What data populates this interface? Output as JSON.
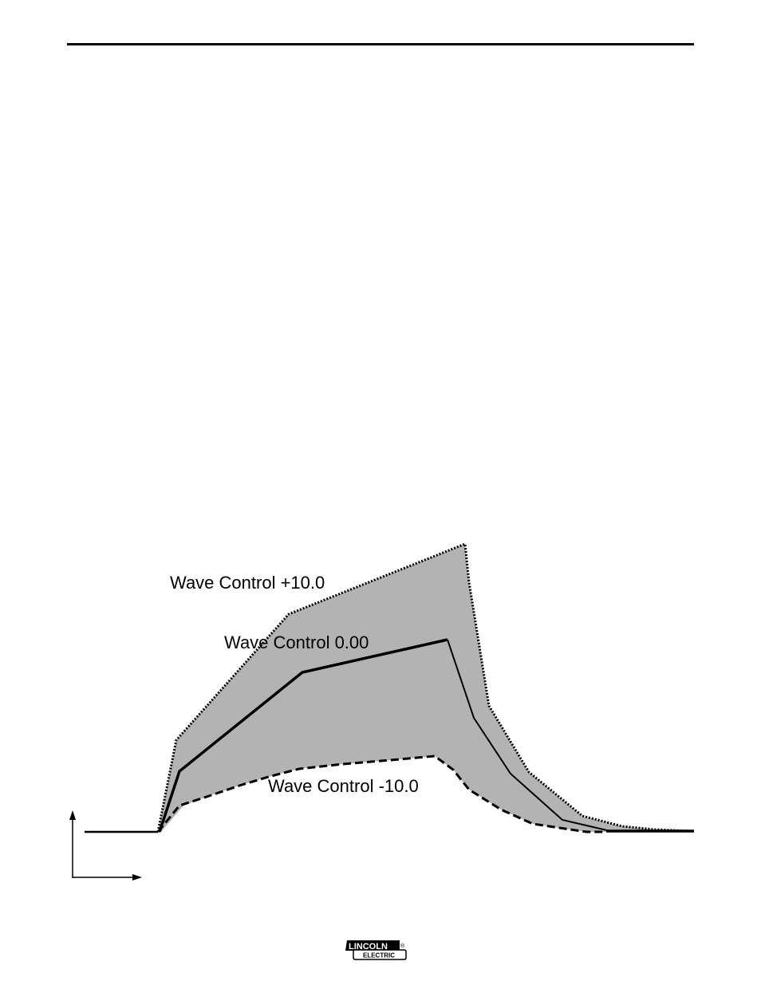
{
  "diagram": {
    "labels": {
      "plus": "Wave Control +10.0",
      "zero": "Wave Control 0.00",
      "minus": "Wave Control -10.0"
    },
    "colors": {
      "envelope_fill": "#b3b3b3",
      "line": "#000000"
    }
  },
  "logo": {
    "top_text": "LINCOLN",
    "bottom_text": "ELECTRIC",
    "mark": "®"
  }
}
